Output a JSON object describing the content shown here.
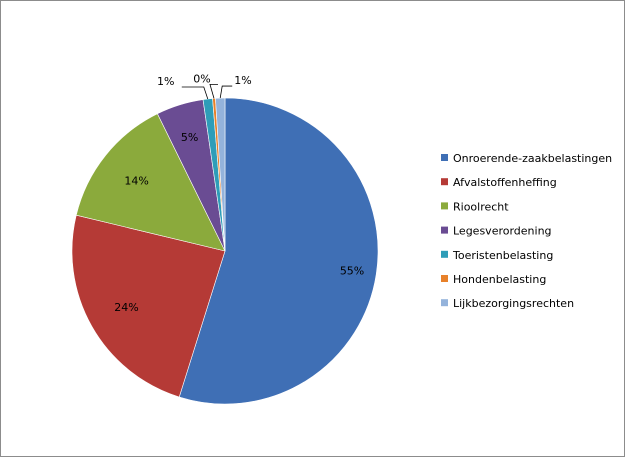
{
  "chart_data": {
    "type": "pie",
    "title": "",
    "categories": [
      "Onroerende-zaakbelastingen",
      "Afvalstoffenheffing",
      "Rioolrecht",
      "Legesverordening",
      "Toeristenbelasting",
      "Hondenbelasting",
      "Lijkbezorgingsrechten"
    ],
    "values": [
      55,
      24,
      14,
      5,
      1,
      0.3,
      1
    ],
    "labels": [
      "55%",
      "24%",
      "14%",
      "5%",
      "1%",
      "0%",
      "1%"
    ],
    "colors": [
      "#3F6FB5",
      "#B53A36",
      "#8BAA3C",
      "#6A4C93",
      "#2E9DB8",
      "#E8812A",
      "#94B3DB"
    ],
    "legend_position": "right"
  }
}
